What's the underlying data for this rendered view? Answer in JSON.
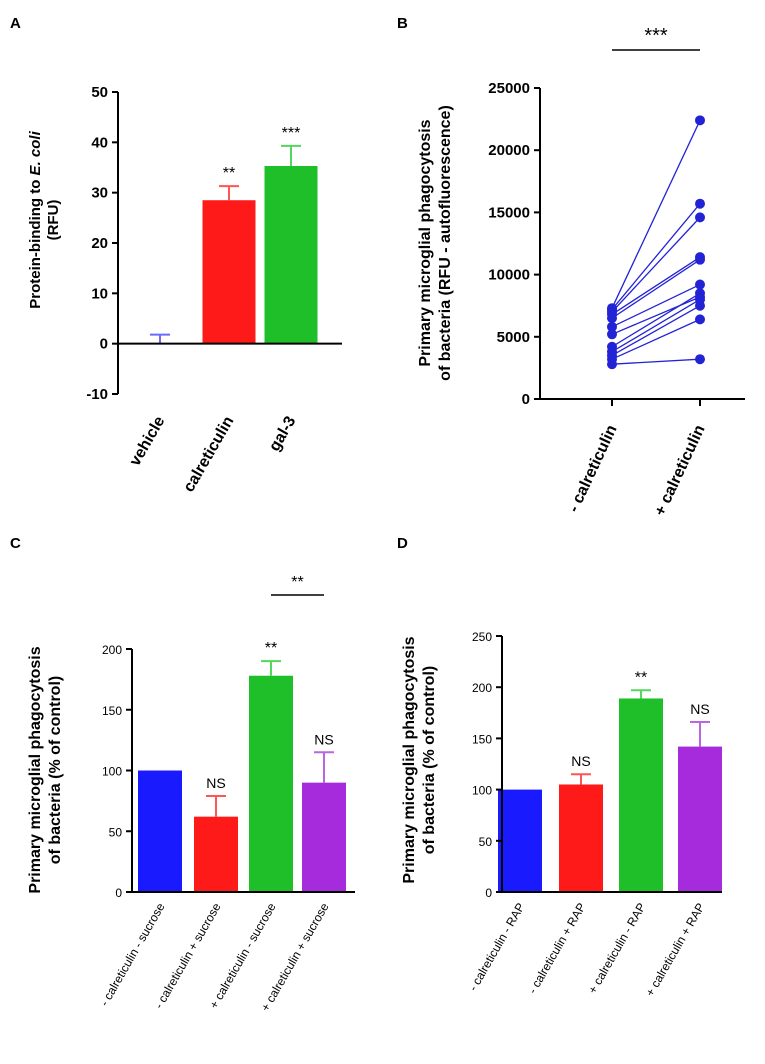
{
  "chart_data": [
    {
      "panel": "A",
      "type": "bar",
      "ylabel_line1": "Protein-binding to",
      "ylabel_italic": "E. coli",
      "ylabel_line2": "(RFU)",
      "ylim": [
        -10,
        50
      ],
      "yticks": [
        -10,
        0,
        10,
        20,
        30,
        40,
        50
      ],
      "categories": [
        "vehicle",
        "calreticulin",
        "gal-3"
      ],
      "values": [
        0,
        28.5,
        35.3
      ],
      "errors": [
        1.8,
        2.8,
        4.0
      ],
      "colors": [
        "#3b3bd6",
        "#ff1a1a",
        "#1fbf2a"
      ],
      "error_colors": [
        "#6a6aff",
        "#ff5555",
        "#55d65f"
      ],
      "significance": [
        "",
        "**",
        "***"
      ]
    },
    {
      "panel": "B",
      "type": "scatter",
      "ylabel_line1": "Primary microglial phagocytosis",
      "ylabel_line2": "of bacteria (RFU - autofluorescence)",
      "ylim": [
        0,
        25000
      ],
      "yticks": [
        0,
        5000,
        10000,
        15000,
        20000,
        25000
      ],
      "categories": [
        "- calreticulin",
        "+ calreticulin"
      ],
      "pairs": [
        [
          2800,
          3200
        ],
        [
          3200,
          6400
        ],
        [
          3500,
          7500
        ],
        [
          3800,
          8000
        ],
        [
          4200,
          8500
        ],
        [
          5200,
          8200
        ],
        [
          5800,
          9200
        ],
        [
          6500,
          11200
        ],
        [
          6800,
          11400
        ],
        [
          7000,
          14600
        ],
        [
          7200,
          15700
        ],
        [
          7300,
          22400
        ]
      ],
      "color": "#2323d6",
      "significance": "***"
    },
    {
      "panel": "C",
      "type": "bar",
      "ylabel_line1": "Primary microglial phagocytosis",
      "ylabel_line2": "of bacteria (% of control)",
      "ylim": [
        0,
        200
      ],
      "yticks": [
        0,
        50,
        100,
        150,
        200
      ],
      "categories": [
        "- calreticulin - sucrose",
        "- calreticulin + sucrose",
        "+ calreticulin - sucrose",
        "+ calreticulin + sucrose"
      ],
      "values": [
        100,
        62,
        178,
        90
      ],
      "errors": [
        0,
        17,
        12,
        25
      ],
      "colors": [
        "#1a1aff",
        "#ff1a1a",
        "#1fbf2a",
        "#a52bdc"
      ],
      "error_colors": [
        "#1a1aff",
        "#ff5555",
        "#55d65f",
        "#b865e6"
      ],
      "significance": [
        "",
        "NS",
        "**",
        "NS"
      ],
      "bracket_label": "**"
    },
    {
      "panel": "D",
      "type": "bar",
      "ylabel_line1": "Primary microglial phagocytosis",
      "ylabel_line2": "of bacteria  (% of control)",
      "ylim": [
        0,
        250
      ],
      "yticks": [
        0,
        50,
        100,
        150,
        200,
        250
      ],
      "categories": [
        "- calreticulin - RAP",
        "- calreticulin + RAP",
        "+ calreticulin - RAP",
        "+ calreticulin + RAP"
      ],
      "values": [
        100,
        105,
        189,
        142
      ],
      "errors": [
        0,
        10,
        8,
        24
      ],
      "colors": [
        "#1a1aff",
        "#ff1a1a",
        "#1fbf2a",
        "#a52bdc"
      ],
      "error_colors": [
        "#1a1aff",
        "#ff5555",
        "#55d65f",
        "#b865e6"
      ],
      "significance": [
        "",
        "NS",
        "**",
        "NS"
      ]
    }
  ]
}
